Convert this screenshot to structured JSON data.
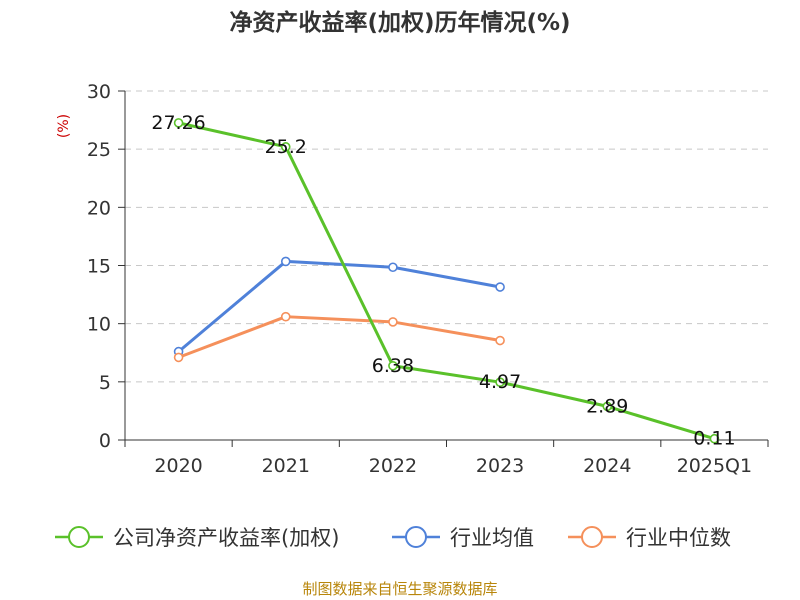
{
  "chart_data": {
    "type": "line",
    "title": "净资产收益率(加权)历年情况(%)",
    "ylabel": "(%)",
    "xlabel": "",
    "categories": [
      "2020",
      "2021",
      "2022",
      "2023",
      "2024",
      "2025Q1"
    ],
    "ylim": [
      0,
      30
    ],
    "yticks": [
      0,
      5,
      10,
      15,
      20,
      25,
      30
    ],
    "grid": true,
    "legend_position": "bottom",
    "series": [
      {
        "name": "公司净资产收益率(加权)",
        "color": "#5ac12a",
        "values": [
          27.26,
          25.2,
          6.38,
          4.97,
          2.89,
          0.11
        ],
        "labels": [
          "27.26",
          "25.2",
          "6.38",
          "4.97",
          "2.89",
          "0.11"
        ],
        "show_labels": true
      },
      {
        "name": "行业均值",
        "color": "#4f81d9",
        "values": [
          7.6,
          15.35,
          14.85,
          13.15,
          null,
          null
        ],
        "show_labels": false
      },
      {
        "name": "行业中位数",
        "color": "#f5905b",
        "values": [
          7.1,
          10.6,
          10.15,
          8.55,
          null,
          null
        ],
        "show_labels": false
      }
    ]
  },
  "source": "制图数据来自恒生聚源数据库"
}
